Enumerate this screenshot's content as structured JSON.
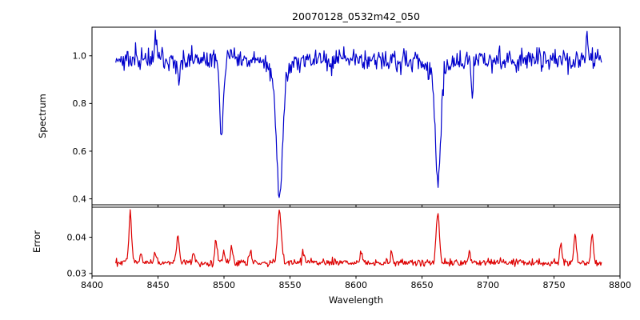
{
  "chart_data": {
    "type": "line",
    "title": "20070128_0532m42_050",
    "xlabel": "Wavelength",
    "x_range": [
      8400,
      8800
    ],
    "x_ticks": [
      8400,
      8450,
      8500,
      8550,
      8600,
      8650,
      8700,
      8750,
      8800
    ],
    "x_tick_labels": [
      "8400",
      "8450",
      "8500",
      "8550",
      "8600",
      "8650",
      "8700",
      "8750",
      "8800"
    ],
    "x_data_range": [
      8418,
      8786
    ],
    "n_points": 640,
    "seed": 20070128,
    "background": "#ffffff",
    "axis_color": "#000000",
    "grid": false,
    "legend": "none",
    "panels": [
      {
        "name": "spectrum",
        "ylabel": "Spectrum",
        "ylim": [
          0.375,
          1.12
        ],
        "y_ticks": [
          0.4,
          0.6,
          0.8,
          1.0
        ],
        "y_tick_labels": [
          "0.4",
          "0.6",
          "0.8",
          "1.0"
        ],
        "color": "#0000cc",
        "baseline": 0.985,
        "noise_sigma": 0.023,
        "features": [
          {
            "center": 8498.0,
            "amp": -0.345,
            "sigma": 1.4
          },
          {
            "center": 8542.1,
            "amp": -0.51,
            "sigma": 2.4
          },
          {
            "center": 8542.1,
            "amp": -0.055,
            "sigma": 8.0
          },
          {
            "center": 8662.1,
            "amp": -0.47,
            "sigma": 2.0
          },
          {
            "center": 8662.1,
            "amp": -0.05,
            "sigma": 7.0
          },
          {
            "center": 8448.0,
            "amp": 0.1,
            "sigma": 0.8
          },
          {
            "center": 8466.0,
            "amp": -0.09,
            "sigma": 0.8
          },
          {
            "center": 8688.0,
            "amp": -0.17,
            "sigma": 0.7
          },
          {
            "center": 8775.0,
            "amp": 0.09,
            "sigma": 0.8
          }
        ]
      },
      {
        "name": "error",
        "ylabel": "Error",
        "ylim": [
          0.0293,
          0.0483
        ],
        "y_ticks": [
          0.03,
          0.04
        ],
        "y_tick_labels": [
          "0.03",
          "0.04"
        ],
        "color": "#dd0000",
        "baseline": 0.0327,
        "noise_sigma": 0.00045,
        "texture_sigma": 0.00035,
        "features": [
          {
            "center": 8429,
            "amp": 0.014,
            "sigma": 1.0
          },
          {
            "center": 8437,
            "amp": 0.0025,
            "sigma": 0.8
          },
          {
            "center": 8448,
            "amp": 0.003,
            "sigma": 0.9
          },
          {
            "center": 8465,
            "amp": 0.0072,
            "sigma": 1.1
          },
          {
            "center": 8477,
            "amp": 0.0028,
            "sigma": 0.9
          },
          {
            "center": 8494,
            "amp": 0.0065,
            "sigma": 1.0
          },
          {
            "center": 8500,
            "amp": 0.0035,
            "sigma": 0.9
          },
          {
            "center": 8506,
            "amp": 0.0042,
            "sigma": 0.9
          },
          {
            "center": 8520,
            "amp": 0.003,
            "sigma": 0.9
          },
          {
            "center": 8542,
            "amp": 0.0143,
            "sigma": 1.4
          },
          {
            "center": 8560,
            "amp": 0.0028,
            "sigma": 0.9
          },
          {
            "center": 8604,
            "amp": 0.0026,
            "sigma": 0.9
          },
          {
            "center": 8627,
            "amp": 0.0026,
            "sigma": 0.9
          },
          {
            "center": 8662,
            "amp": 0.0142,
            "sigma": 1.2
          },
          {
            "center": 8686,
            "amp": 0.003,
            "sigma": 0.9
          },
          {
            "center": 8755,
            "amp": 0.0048,
            "sigma": 0.9
          },
          {
            "center": 8766,
            "amp": 0.008,
            "sigma": 0.9
          },
          {
            "center": 8779,
            "amp": 0.0082,
            "sigma": 0.9
          }
        ]
      }
    ]
  }
}
